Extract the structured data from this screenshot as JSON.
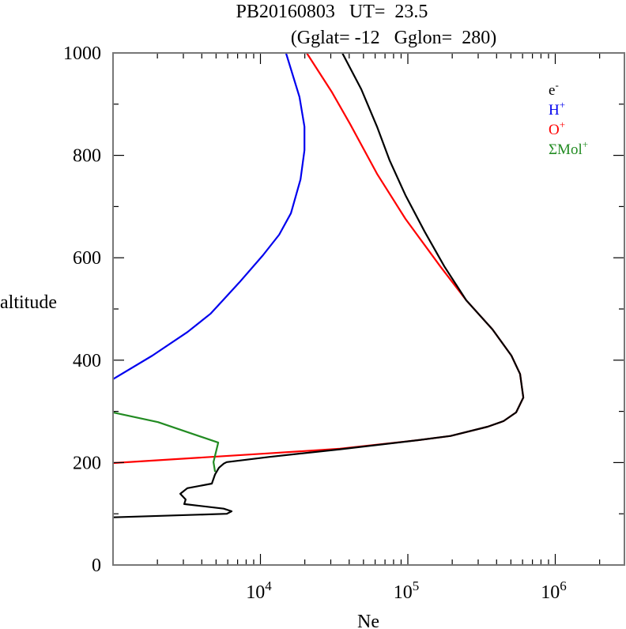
{
  "chart_data": {
    "type": "line",
    "title": "PB20160803   UT=  23.5",
    "subtitle": "(Gglat= -12   Gglon=  280)",
    "xlabel": "Ne",
    "ylabel": "altitude",
    "xscale": "log",
    "xlim": [
      1000,
      3000000
    ],
    "ylim": [
      0,
      1000
    ],
    "xticks": [
      {
        "value": 10000,
        "base": "10",
        "exp": "4"
      },
      {
        "value": 100000,
        "base": "10",
        "exp": "5"
      },
      {
        "value": 1000000,
        "base": "10",
        "exp": "6"
      }
    ],
    "yticks": [
      {
        "value": 0,
        "label": "0"
      },
      {
        "value": 200,
        "label": "200"
      },
      {
        "value": 400,
        "label": "400"
      },
      {
        "value": 600,
        "label": "600"
      },
      {
        "value": 800,
        "label": "800"
      },
      {
        "value": 1000,
        "label": "1000"
      }
    ],
    "legend_position": "top-right",
    "series": [
      {
        "name": "e-",
        "base": "e",
        "sup": "-",
        "color": "#000000",
        "points": [
          [
            35900,
            1000
          ],
          [
            48300,
            929
          ],
          [
            61800,
            856
          ],
          [
            75300,
            790
          ],
          [
            96400,
            722
          ],
          [
            130000,
            651
          ],
          [
            177000,
            583
          ],
          [
            249000,
            517
          ],
          [
            375000,
            460
          ],
          [
            504000,
            409
          ],
          [
            577000,
            373
          ],
          [
            607000,
            327
          ],
          [
            543000,
            298
          ],
          [
            446000,
            281
          ],
          [
            348000,
            270
          ],
          [
            195000,
            252
          ],
          [
            119000,
            244
          ],
          [
            34600,
            226
          ],
          [
            11400,
            211
          ],
          [
            5900,
            201
          ],
          [
            5640,
            198
          ],
          [
            5230,
            190
          ],
          [
            4920,
            177
          ],
          [
            4680,
            159
          ],
          [
            3190,
            150
          ],
          [
            2860,
            139
          ],
          [
            3110,
            128
          ],
          [
            3040,
            119
          ],
          [
            5630,
            110
          ],
          [
            6370,
            105
          ],
          [
            5920,
            100
          ],
          [
            1000,
            93
          ]
        ]
      },
      {
        "name": "H+",
        "base": "H",
        "sup": "+",
        "color": "#0000ee",
        "points": [
          [
            14900,
            1000
          ],
          [
            18400,
            914
          ],
          [
            19900,
            856
          ],
          [
            19900,
            810
          ],
          [
            18700,
            753
          ],
          [
            16100,
            687
          ],
          [
            13400,
            645
          ],
          [
            10400,
            605
          ],
          [
            7200,
            552
          ],
          [
            4600,
            491
          ],
          [
            3200,
            455
          ],
          [
            1850,
            409
          ],
          [
            1000,
            363
          ]
        ]
      },
      {
        "name": "O+",
        "base": "O",
        "sup": "+",
        "color": "#ff0000",
        "points": [
          [
            20600,
            1000
          ],
          [
            30600,
            923
          ],
          [
            40600,
            861
          ],
          [
            61800,
            764
          ],
          [
            96400,
            676
          ],
          [
            166000,
            583
          ],
          [
            249000,
            517
          ],
          [
            375000,
            460
          ],
          [
            504000,
            409
          ],
          [
            577000,
            373
          ],
          [
            607000,
            327
          ],
          [
            543000,
            298
          ],
          [
            446000,
            281
          ],
          [
            348000,
            270
          ],
          [
            195000,
            252
          ],
          [
            119000,
            244
          ],
          [
            34600,
            227
          ],
          [
            11400,
            218
          ],
          [
            1000,
            199
          ]
        ]
      },
      {
        "name": "ΣMol+",
        "base": "ΣMol",
        "sup": "+",
        "color": "#228b22",
        "points": [
          [
            1000,
            298
          ],
          [
            2020,
            279
          ],
          [
            5170,
            239
          ],
          [
            4800,
            201
          ],
          [
            4920,
            182
          ]
        ]
      }
    ]
  }
}
